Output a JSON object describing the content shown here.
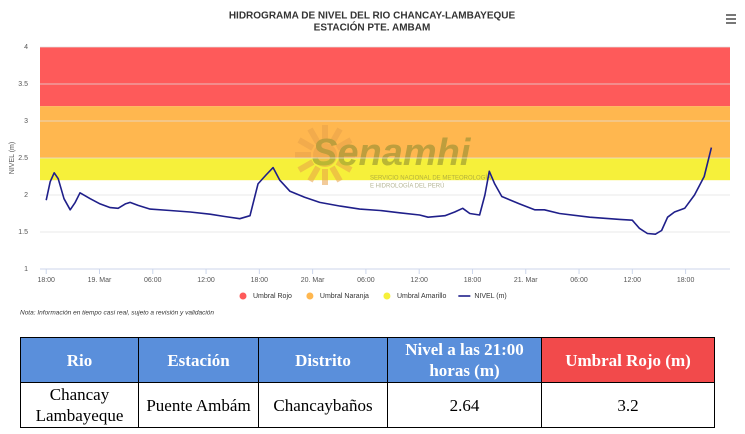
{
  "chart_data": {
    "type": "line",
    "title": "HIDROGRAMA DE NIVEL DEL RIO CHANCAY-LAMBAYEQUE",
    "subtitle": "ESTACIÓN PTE. AMBAM",
    "y_label": "NIVEL (m)",
    "ylim": [
      1,
      4
    ],
    "yticks": [
      1,
      1.5,
      2,
      2.5,
      3,
      3.5,
      4
    ],
    "xlim": [
      -0.7,
      77
    ],
    "xticks": [
      {
        "value": 0,
        "label": "18:00"
      },
      {
        "value": 6,
        "label": "19. Mar"
      },
      {
        "value": 12,
        "label": "06:00"
      },
      {
        "value": 18,
        "label": "12:00"
      },
      {
        "value": 24,
        "label": "18:00"
      },
      {
        "value": 30,
        "label": "20. Mar"
      },
      {
        "value": 36,
        "label": "06:00"
      },
      {
        "value": 42,
        "label": "12:00"
      },
      {
        "value": 48,
        "label": "18:00"
      },
      {
        "value": 54,
        "label": "21. Mar"
      },
      {
        "value": 60,
        "label": "06:00"
      },
      {
        "value": 66,
        "label": "12:00"
      },
      {
        "value": 72,
        "label": "18:00"
      }
    ],
    "bands": [
      {
        "name": "Umbral Rojo",
        "color": "#fe5a5a",
        "from": 3.2,
        "to": 4
      },
      {
        "name": "Umbral Naranja",
        "color": "#ffb74f",
        "from": 2.5,
        "to": 3.2
      },
      {
        "name": "Umbral Amarillo",
        "color": "#f6f03a",
        "from": 2.2,
        "to": 2.5
      }
    ],
    "series": [
      {
        "name": "NIVEL (m)",
        "color": "#1f1f8a",
        "x": [
          0,
          0.45,
          0.9,
          1.35,
          2.0,
          2.7,
          3.26,
          3.8,
          4.95,
          6.07,
          7.2,
          8.1,
          8.9,
          9.45,
          10.35,
          11.7,
          13.95,
          16.2,
          18.45,
          20.1,
          21.8,
          22.95,
          23.85,
          24.75,
          25.55,
          26.3,
          27.45,
          29.1,
          30.8,
          33.1,
          35.3,
          37.6,
          39.8,
          42.05,
          43,
          44.9,
          46,
          46.9,
          47.7,
          48.8,
          49.4,
          49.9,
          50.5,
          51.3,
          53.3,
          55,
          56.1,
          57.8,
          61.2,
          64.6,
          66,
          66.8,
          67.7,
          68.6,
          69.3,
          69.97,
          70.75,
          71.9,
          73,
          74.1,
          74.9
        ],
        "values": [
          1.93,
          2.18,
          2.3,
          2.22,
          1.95,
          1.8,
          1.9,
          2.03,
          1.95,
          1.88,
          1.83,
          1.82,
          1.88,
          1.9,
          1.86,
          1.81,
          1.79,
          1.77,
          1.74,
          1.71,
          1.68,
          1.72,
          2.15,
          2.27,
          2.37,
          2.2,
          2.05,
          1.97,
          1.9,
          1.85,
          1.81,
          1.79,
          1.76,
          1.73,
          1.7,
          1.72,
          1.77,
          1.82,
          1.75,
          1.73,
          2.0,
          2.32,
          2.15,
          1.98,
          1.88,
          1.8,
          1.8,
          1.75,
          1.7,
          1.67,
          1.66,
          1.55,
          1.48,
          1.47,
          1.52,
          1.7,
          1.77,
          1.82,
          2.0,
          2.25,
          2.64
        ]
      }
    ],
    "grid": true,
    "watermark": {
      "name": "Senamhi",
      "lines": [
        "SERVICIO NACIONAL DE METEOROLOGÍA",
        "E HIDROLOGÍA DEL PERÚ"
      ]
    }
  },
  "note": "Nota: Información en tiempo casi real, sujeto a revisión y validación",
  "table": {
    "header": [
      "Rio",
      "Estación",
      "Distrito",
      "Nivel a las 21:00 horas (m)",
      "Umbral Rojo (m)"
    ],
    "rows": [
      [
        "Chancay Lambayeque",
        "Puente Ambám",
        "Chancaybaños",
        "2.64",
        "3.2"
      ]
    ]
  }
}
